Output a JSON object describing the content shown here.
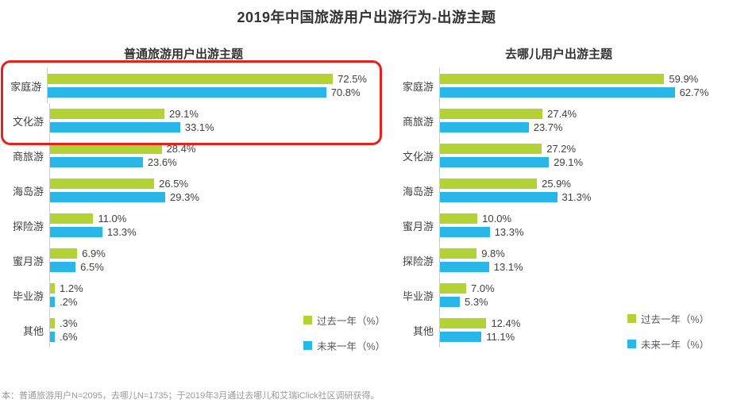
{
  "page": {
    "title": "2019年中国旅游用户出游行为-出游主题",
    "footnote": "本：普通旅游用户N=2095，去哪儿N=1735；于2019年3月通过去哪儿和艾瑞iClick社区调研获得。"
  },
  "colors": {
    "past_year": "#b3d235",
    "next_year": "#29b7ea",
    "highlight_box": "#e8201a"
  },
  "chart_data": [
    {
      "type": "bar",
      "orientation": "horizontal",
      "title": "普通旅游用户出游主题",
      "categories": [
        "家庭游",
        "文化游",
        "商旅游",
        "海岛游",
        "探险游",
        "蜜月游",
        "毕业游",
        "其他"
      ],
      "series": [
        {
          "name": "过去一年（%）",
          "color": "#b3d235",
          "values": [
            72.5,
            29.1,
            28.4,
            26.5,
            11.0,
            6.9,
            1.2,
            0.3
          ],
          "labels": [
            "72.5%",
            "29.1%",
            "28.4%",
            "26.5%",
            "11.0%",
            "6.9%",
            "1.2%",
            ".3%"
          ]
        },
        {
          "name": "未来一年（%）",
          "color": "#29b7ea",
          "values": [
            70.8,
            33.1,
            23.6,
            29.3,
            13.3,
            6.5,
            0.2,
            0.6
          ],
          "labels": [
            "70.8%",
            "33.1%",
            "23.6%",
            "29.3%",
            "13.3%",
            "6.5%",
            ".2%",
            ".6%"
          ]
        }
      ],
      "xmax": 80,
      "grid": false,
      "legend_position": "bottom-right",
      "annotation": {
        "type": "highlight-box",
        "color": "#e8201a",
        "highlighted_categories": [
          "家庭游",
          "文化游"
        ]
      }
    },
    {
      "type": "bar",
      "orientation": "horizontal",
      "title": "去哪儿用户出游主题",
      "categories": [
        "家庭游",
        "商旅游",
        "文化游",
        "海岛游",
        "蜜月游",
        "探险游",
        "毕业游",
        "其他"
      ],
      "series": [
        {
          "name": "过去一年（%）",
          "color": "#b3d235",
          "values": [
            59.9,
            27.4,
            27.2,
            25.9,
            10.0,
            9.8,
            7.0,
            12.4
          ],
          "labels": [
            "59.9%",
            "27.4%",
            "27.2%",
            "25.9%",
            "10.0%",
            "9.8%",
            "7.0%",
            "12.4%"
          ]
        },
        {
          "name": "未来一年（%）",
          "color": "#29b7ea",
          "values": [
            62.7,
            23.7,
            29.1,
            31.3,
            13.3,
            13.1,
            5.3,
            11.1
          ],
          "labels": [
            "62.7%",
            "23.7%",
            "29.1%",
            "31.3%",
            "13.3%",
            "13.1%",
            "5.3%",
            "11.1%"
          ]
        }
      ],
      "xmax": 70,
      "grid": false,
      "legend_position": "bottom-right"
    }
  ]
}
